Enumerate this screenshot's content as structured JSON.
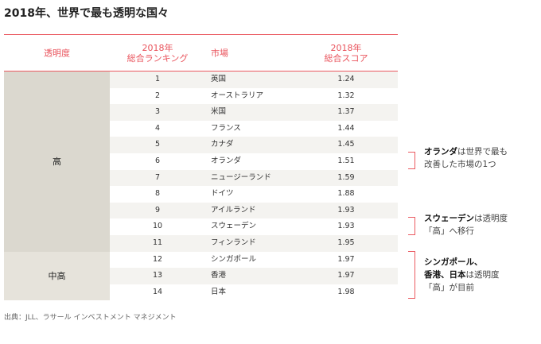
{
  "title": "2018年、世界で最も透明な国々",
  "headers": {
    "transparency": "透明度",
    "rank_line1": "2018年",
    "rank_line2": "総合ランキング",
    "market": "市場",
    "score_line1": "2018年",
    "score_line2": "総合スコア"
  },
  "groups": [
    {
      "label": "高"
    },
    {
      "label": "中高"
    }
  ],
  "rows": [
    {
      "rank": "1",
      "market": "英国",
      "score": "1.24"
    },
    {
      "rank": "2",
      "market": "オーストラリア",
      "score": "1.32"
    },
    {
      "rank": "3",
      "market": "米国",
      "score": "1.37"
    },
    {
      "rank": "4",
      "market": "フランス",
      "score": "1.44"
    },
    {
      "rank": "5",
      "market": "カナダ",
      "score": "1.45"
    },
    {
      "rank": "6",
      "market": "オランダ",
      "score": "1.51"
    },
    {
      "rank": "7",
      "market": "ニュージーランド",
      "score": "1.59"
    },
    {
      "rank": "8",
      "market": "ドイツ",
      "score": "1.88"
    },
    {
      "rank": "9",
      "market": "アイルランド",
      "score": "1.93"
    },
    {
      "rank": "10",
      "market": "スウェーデン",
      "score": "1.93"
    },
    {
      "rank": "11",
      "market": "フィンランド",
      "score": "1.95"
    },
    {
      "rank": "12",
      "market": "シンガポール",
      "score": "1.97"
    },
    {
      "rank": "13",
      "market": "香港",
      "score": "1.97"
    },
    {
      "rank": "14",
      "market": "日本",
      "score": "1.98"
    }
  ],
  "notes": [
    {
      "bold": "オランダ",
      "rest": "は世界で最も",
      "line2": "改善した市場の1つ"
    },
    {
      "bold": "スウェーデン",
      "rest": "は透明度",
      "line2": "「高」へ移行"
    },
    {
      "bold": "シンガポール、",
      "bold2": "香港、日本",
      "rest": "は透明度",
      "line2": "「高」が目前"
    }
  ],
  "source": "出典：JLL、ラサール インベストメント マネジメント",
  "colors": {
    "accent": "#ea5a61",
    "group_high": "#dbd8cf",
    "group_midhigh": "#e6e3db"
  }
}
